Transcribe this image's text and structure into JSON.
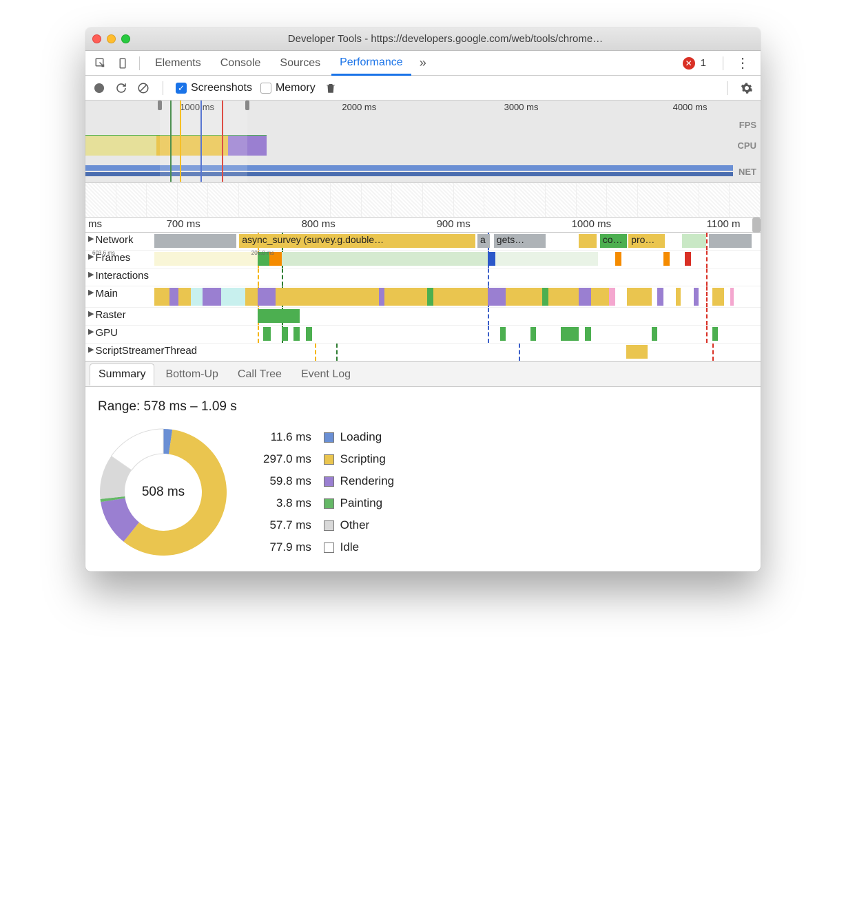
{
  "window": {
    "title": "Developer Tools - https://developers.google.com/web/tools/chrome…"
  },
  "tabs": {
    "items": [
      "Elements",
      "Console",
      "Sources",
      "Performance"
    ],
    "active_index": 3,
    "more_glyph": "»",
    "error_count": "1"
  },
  "toolbar": {
    "screenshots_label": "Screenshots",
    "screenshots_checked": true,
    "memory_label": "Memory",
    "memory_checked": false
  },
  "overview": {
    "ruler_ticks": [
      {
        "label": "1000 ms",
        "pct": 14
      },
      {
        "label": "2000 ms",
        "pct": 38
      },
      {
        "label": "3000 ms",
        "pct": 62
      },
      {
        "label": "4000 ms",
        "pct": 87
      }
    ],
    "lane_labels": {
      "fps": "FPS",
      "cpu": "CPU",
      "net": "NET"
    },
    "cpu_mounds": [
      {
        "left_pct": 0,
        "width_pct": 11,
        "color": "#e6e09a"
      },
      {
        "left_pct": 11,
        "width_pct": 11,
        "color": "#eac54f"
      },
      {
        "left_pct": 22,
        "width_pct": 6,
        "color": "#9a7fd1"
      }
    ],
    "selection": {
      "left_pct": 11,
      "right_pct": 24
    },
    "markers": [
      {
        "pct": 12.5,
        "color": "#2e7d32"
      },
      {
        "pct": 14.0,
        "color": "#f5b400"
      },
      {
        "pct": 17.0,
        "color": "#3b5fc9"
      },
      {
        "pct": 20.2,
        "color": "#d93025"
      }
    ]
  },
  "flame": {
    "ruler_unit": "ms",
    "ruler_ticks": [
      {
        "label": "700 ms",
        "pct": 12
      },
      {
        "label": "800 ms",
        "pct": 32
      },
      {
        "label": "900 ms",
        "pct": 52
      },
      {
        "label": "1000 ms",
        "pct": 72
      },
      {
        "label": "1100 m",
        "pct": 92
      }
    ],
    "vertical_markers": [
      {
        "pct": 17,
        "color": "#f5b400"
      },
      {
        "pct": 21,
        "color": "#2e7d32"
      },
      {
        "pct": 55,
        "color": "#3b5fc9"
      },
      {
        "pct": 91,
        "color": "#d93025"
      }
    ],
    "tracks": [
      {
        "name": "Network",
        "bars": [
          {
            "left_pct": 0,
            "width_pct": 13.5,
            "color": "#aeb3b7",
            "label": ""
          },
          {
            "left_pct": 14,
            "width_pct": 39,
            "color": "#eac54f",
            "label": "async_survey (survey.g.double…"
          },
          {
            "left_pct": 53.3,
            "width_pct": 2,
            "color": "#aeb3b7",
            "label": "a"
          },
          {
            "left_pct": 56,
            "width_pct": 8.5,
            "color": "#aeb3b7",
            "label": "gets…"
          },
          {
            "left_pct": 70,
            "width_pct": 3,
            "color": "#eac54f",
            "label": ""
          },
          {
            "left_pct": 73.5,
            "width_pct": 4.5,
            "color": "#4caf50",
            "label": "co…"
          },
          {
            "left_pct": 78.2,
            "width_pct": 6,
            "color": "#eac54f",
            "label": "pro…"
          },
          {
            "left_pct": 87,
            "width_pct": 4,
            "color": "#c9e8c5",
            "label": ""
          },
          {
            "left_pct": 91.5,
            "width_pct": 7,
            "color": "#aeb3b7",
            "label": ""
          }
        ]
      },
      {
        "name": "Frames",
        "label_tiny": [
          "603.6 ms",
          "206.0 ms"
        ],
        "bars": [
          {
            "left_pct": 0,
            "width_pct": 17,
            "color": "#f9f6d7",
            "label": ""
          },
          {
            "left_pct": 17,
            "width_pct": 2,
            "color": "#4caf50",
            "label": ""
          },
          {
            "left_pct": 19,
            "width_pct": 2,
            "color": "#f58b00",
            "label": ""
          },
          {
            "left_pct": 21,
            "width_pct": 34,
            "color": "#d5ead0",
            "label": ""
          },
          {
            "left_pct": 55,
            "width_pct": 1.2,
            "color": "#2b58c9",
            "label": ""
          },
          {
            "left_pct": 56.2,
            "width_pct": 17,
            "color": "#e9f3e6",
            "label": ""
          },
          {
            "left_pct": 76,
            "width_pct": 1,
            "color": "#f58b00",
            "label": ""
          },
          {
            "left_pct": 84,
            "width_pct": 1,
            "color": "#f58b00",
            "label": ""
          },
          {
            "left_pct": 87.5,
            "width_pct": 1,
            "color": "#d93025",
            "label": ""
          }
        ]
      },
      {
        "name": "Interactions",
        "bars": []
      },
      {
        "name": "Main",
        "main": true,
        "strips": [
          {
            "l": 0,
            "w": 2.5,
            "c": "#eac54f"
          },
          {
            "l": 2.5,
            "w": 1.5,
            "c": "#9a7fd1"
          },
          {
            "l": 4,
            "w": 2,
            "c": "#eac54f"
          },
          {
            "l": 6,
            "w": 2,
            "c": "#c8f0ee"
          },
          {
            "l": 8,
            "w": 3,
            "c": "#9a7fd1"
          },
          {
            "l": 11,
            "w": 4,
            "c": "#c8f0ee"
          },
          {
            "l": 15,
            "w": 2,
            "c": "#eac54f"
          },
          {
            "l": 17,
            "w": 3,
            "c": "#9a7fd1"
          },
          {
            "l": 20,
            "w": 17,
            "c": "#eac54f"
          },
          {
            "l": 37,
            "w": 1,
            "c": "#9a7fd1"
          },
          {
            "l": 38,
            "w": 7,
            "c": "#eac54f"
          },
          {
            "l": 45,
            "w": 1,
            "c": "#4caf50"
          },
          {
            "l": 46,
            "w": 9,
            "c": "#eac54f"
          },
          {
            "l": 55,
            "w": 3,
            "c": "#9a7fd1"
          },
          {
            "l": 58,
            "w": 6,
            "c": "#eac54f"
          },
          {
            "l": 64,
            "w": 1,
            "c": "#4caf50"
          },
          {
            "l": 65,
            "w": 5,
            "c": "#eac54f"
          },
          {
            "l": 70,
            "w": 2,
            "c": "#9a7fd1"
          },
          {
            "l": 72,
            "w": 3,
            "c": "#eac54f"
          },
          {
            "l": 75,
            "w": 1,
            "c": "#f4a7cf"
          },
          {
            "l": 78,
            "w": 4,
            "c": "#eac54f"
          },
          {
            "l": 83,
            "w": 1,
            "c": "#9a7fd1"
          },
          {
            "l": 86,
            "w": 0.8,
            "c": "#eac54f"
          },
          {
            "l": 89,
            "w": 0.8,
            "c": "#9a7fd1"
          },
          {
            "l": 92,
            "w": 2,
            "c": "#eac54f"
          },
          {
            "l": 95,
            "w": 0.6,
            "c": "#f4a7cf"
          }
        ]
      },
      {
        "name": "Raster",
        "bars": [
          {
            "left_pct": 17,
            "width_pct": 7,
            "color": "#4caf50",
            "label": ""
          }
        ]
      },
      {
        "name": "GPU",
        "bars": [
          {
            "left_pct": 18,
            "width_pct": 1.2,
            "color": "#4caf50",
            "label": ""
          },
          {
            "left_pct": 21,
            "width_pct": 1,
            "color": "#4caf50",
            "label": ""
          },
          {
            "left_pct": 23,
            "width_pct": 1,
            "color": "#4caf50",
            "label": ""
          },
          {
            "left_pct": 25,
            "width_pct": 1,
            "color": "#4caf50",
            "label": ""
          },
          {
            "left_pct": 57,
            "width_pct": 1,
            "color": "#4caf50",
            "label": ""
          },
          {
            "left_pct": 62,
            "width_pct": 1,
            "color": "#4caf50",
            "label": ""
          },
          {
            "left_pct": 67,
            "width_pct": 3,
            "color": "#4caf50",
            "label": ""
          },
          {
            "left_pct": 71,
            "width_pct": 1,
            "color": "#4caf50",
            "label": ""
          },
          {
            "left_pct": 82,
            "width_pct": 0.8,
            "color": "#4caf50",
            "label": ""
          },
          {
            "left_pct": 92,
            "width_pct": 0.8,
            "color": "#4caf50",
            "label": ""
          }
        ]
      },
      {
        "name": "ScriptStreamerThread",
        "bars": [
          {
            "left_pct": 75,
            "width_pct": 4,
            "color": "#eac54f",
            "label": ""
          }
        ]
      }
    ]
  },
  "bottom_tabs": {
    "items": [
      "Summary",
      "Bottom-Up",
      "Call Tree",
      "Event Log"
    ],
    "active_index": 0
  },
  "summary": {
    "range_label": "Range: 578 ms – 1.09 s",
    "total_label": "508 ms",
    "donut": {
      "background_color": "#ffffff",
      "slices": [
        {
          "label": "Loading",
          "ms": "11.6 ms",
          "value": 11.6,
          "color": "#6a8fd4"
        },
        {
          "label": "Scripting",
          "ms": "297.0 ms",
          "value": 297.0,
          "color": "#eac54f"
        },
        {
          "label": "Rendering",
          "ms": "59.8 ms",
          "value": 59.8,
          "color": "#9a7fd1"
        },
        {
          "label": "Painting",
          "ms": "3.8 ms",
          "value": 3.8,
          "color": "#65b867"
        },
        {
          "label": "Other",
          "ms": "57.7 ms",
          "value": 57.7,
          "color": "#d9d9d9"
        },
        {
          "label": "Idle",
          "ms": "77.9 ms",
          "value": 77.9,
          "color": "#ffffff"
        }
      ],
      "inner_radius": 56,
      "outer_radius": 92
    }
  }
}
